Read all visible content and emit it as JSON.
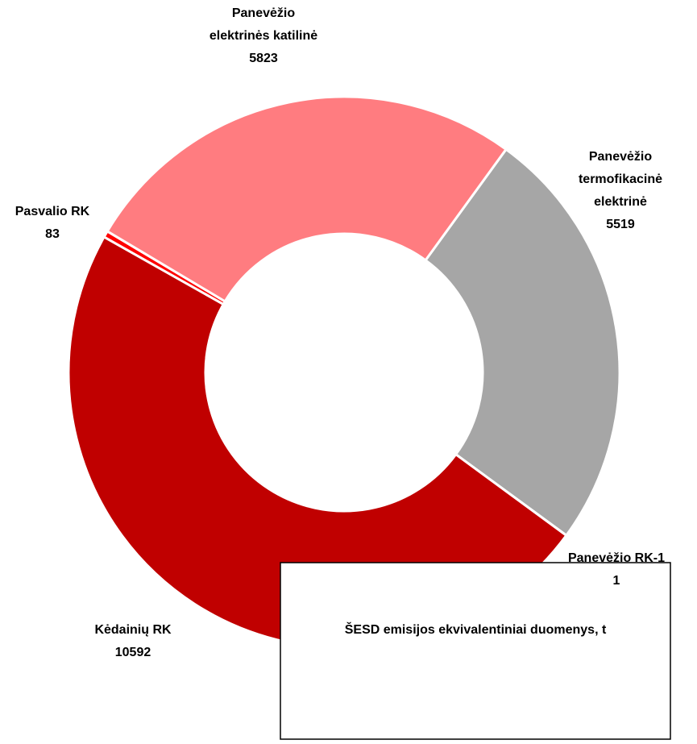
{
  "chart_data": {
    "type": "donut",
    "title": "ŠESD emisijos ekvivalentiniai duomenys, t",
    "categories": [
      [
        "Panevėžio",
        "termofikacinė",
        "elektrinė"
      ],
      [
        "Panevėžio RK-1"
      ],
      [
        "Kėdainių RK"
      ],
      [
        "Pasvalio RK"
      ],
      [
        "Panevėžio",
        "elektrinės katilinė"
      ]
    ],
    "values": [
      5519,
      1,
      10592,
      83,
      5823
    ],
    "colors": [
      "#a6a6a6",
      "#1f5c99",
      "#c00000",
      "#ff0000",
      "#ff7c80"
    ]
  }
}
